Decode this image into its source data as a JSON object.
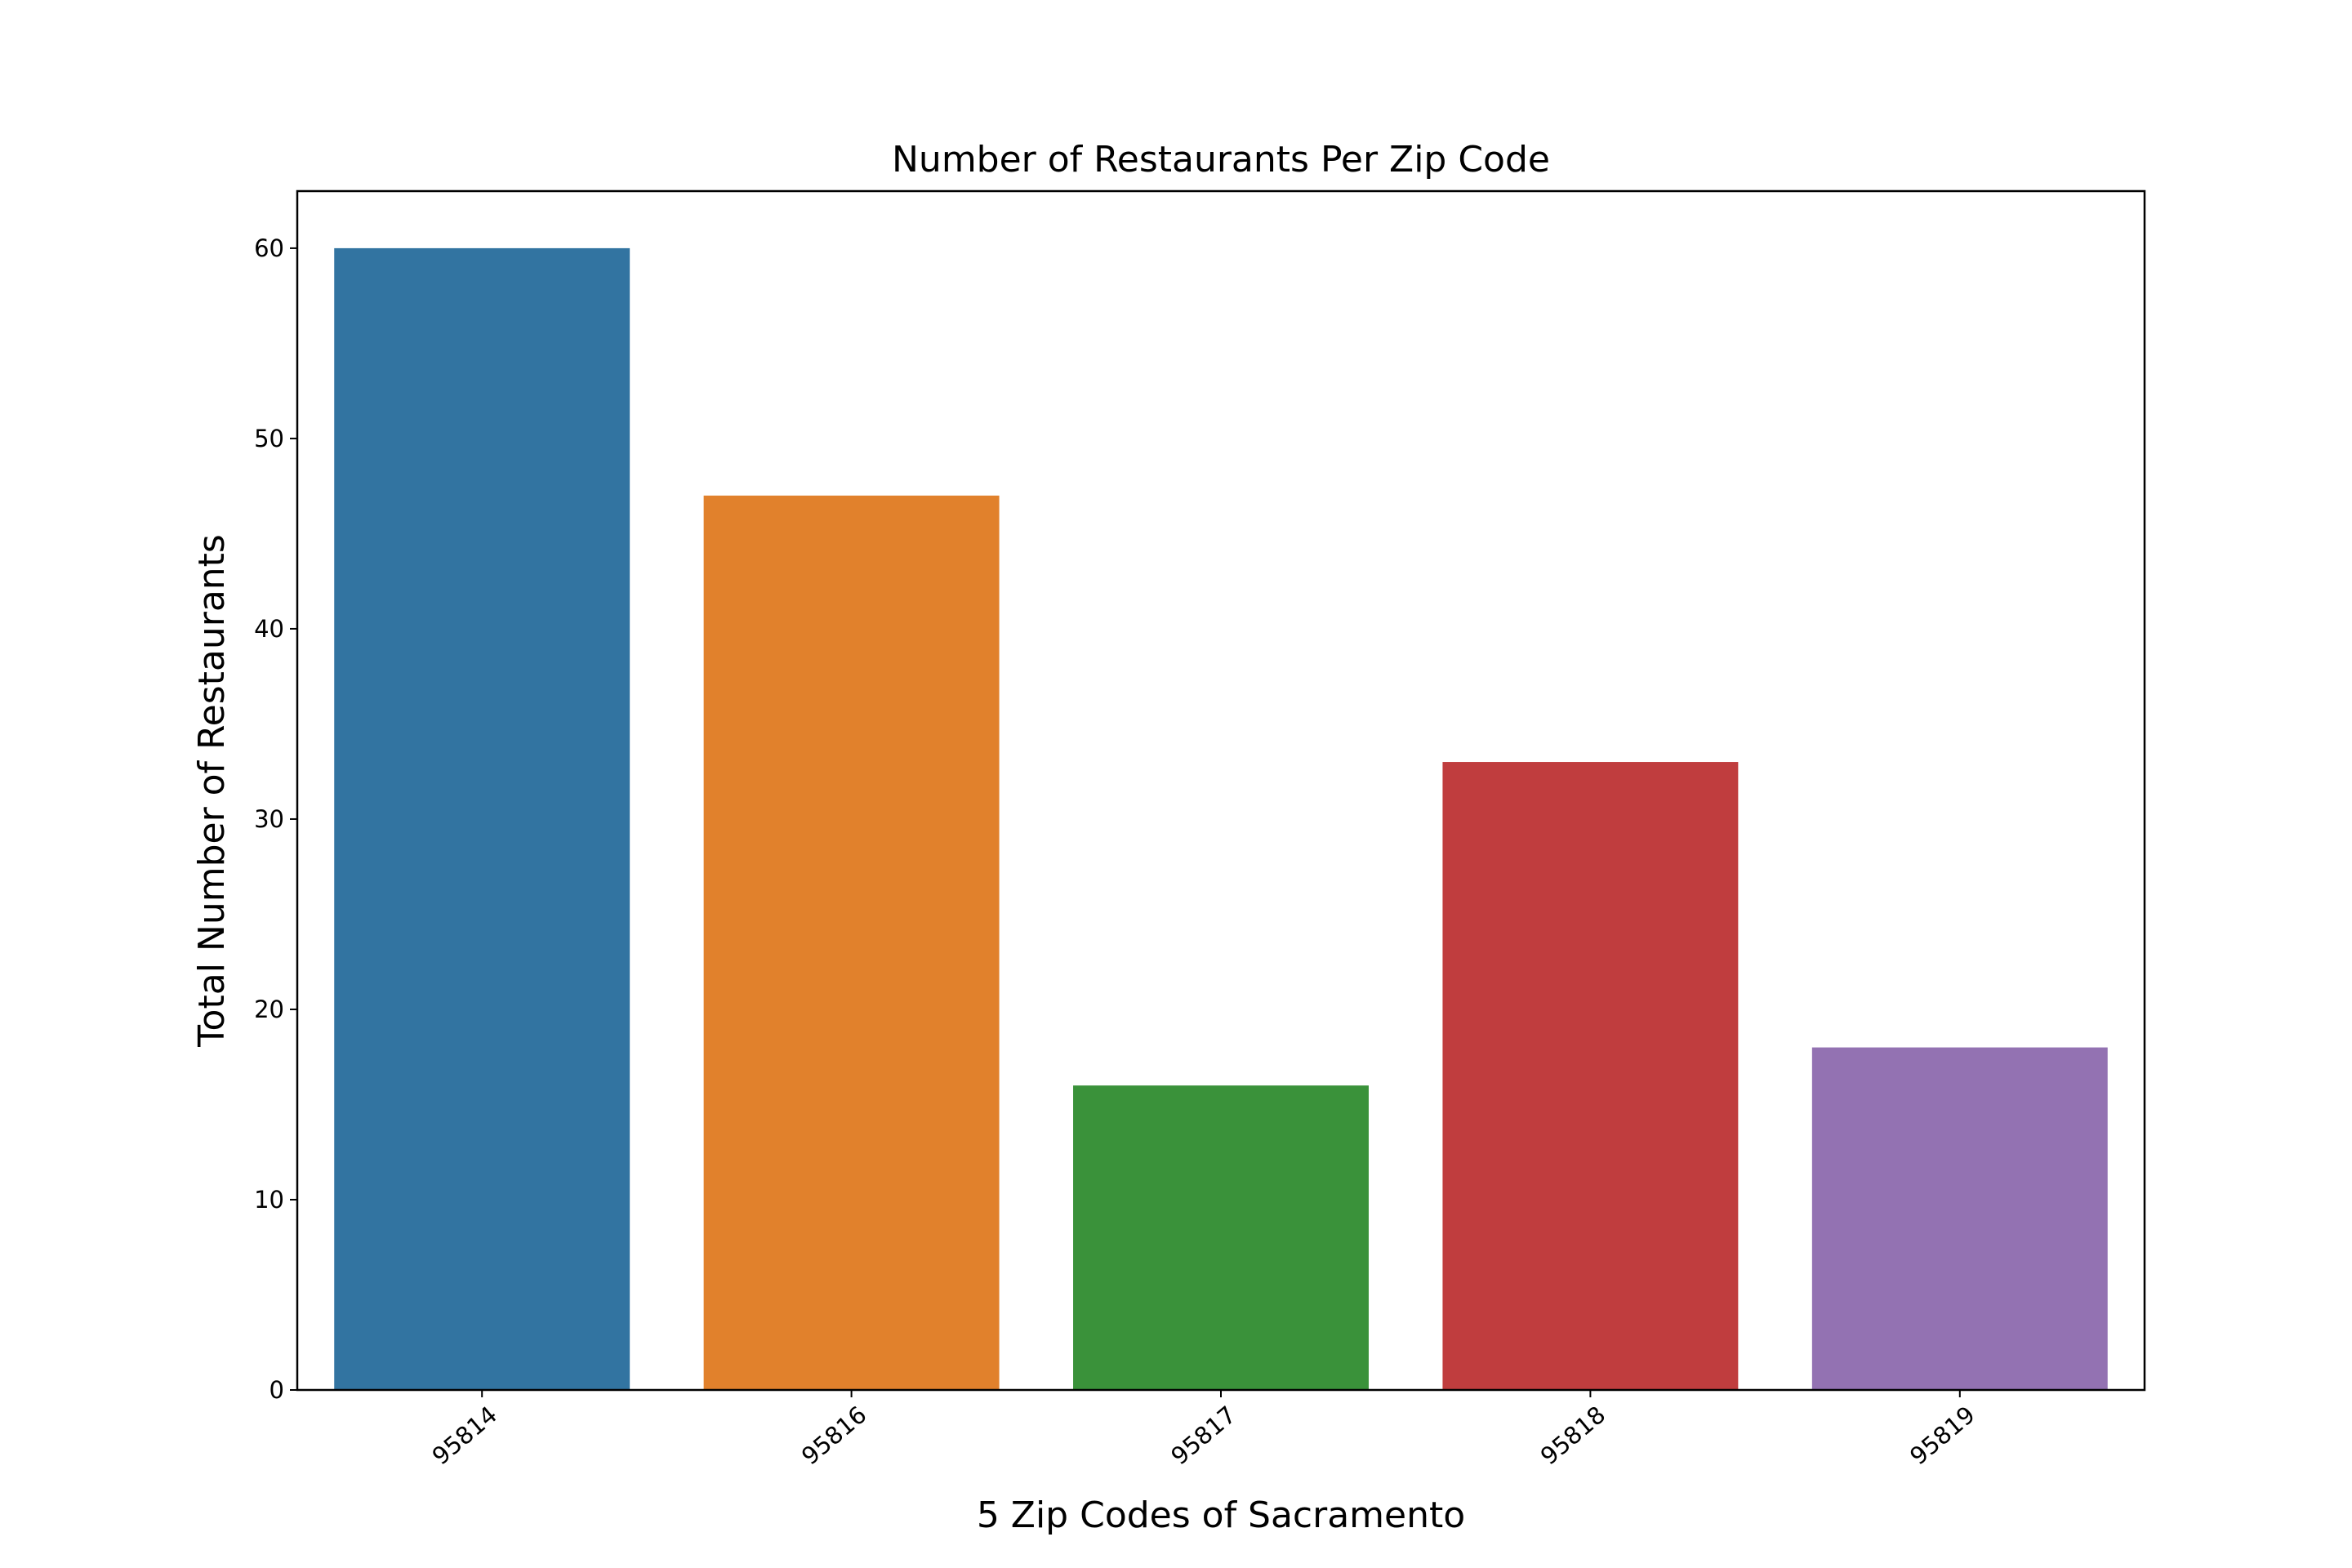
{
  "chart_data": {
    "type": "bar",
    "title": "Number of Restaurants Per Zip Code",
    "xlabel": "5 Zip Codes of Sacramento",
    "ylabel": "Total Number of Restaurants",
    "categories": [
      "95814",
      "95816",
      "95817",
      "95818",
      "95819"
    ],
    "values": [
      60,
      47,
      16,
      33,
      18
    ],
    "colors": [
      "#3274a1",
      "#e1812c",
      "#3a923a",
      "#c03d3e",
      "#9372b2"
    ],
    "ylim": [
      0,
      63
    ],
    "yticks": [
      0,
      10,
      20,
      30,
      40,
      50,
      60
    ],
    "ytick_labels": [
      "0",
      "10",
      "20",
      "30",
      "40",
      "50",
      "60"
    ],
    "xtick_rotation_deg": 40,
    "grid": false,
    "legend": "none"
  }
}
